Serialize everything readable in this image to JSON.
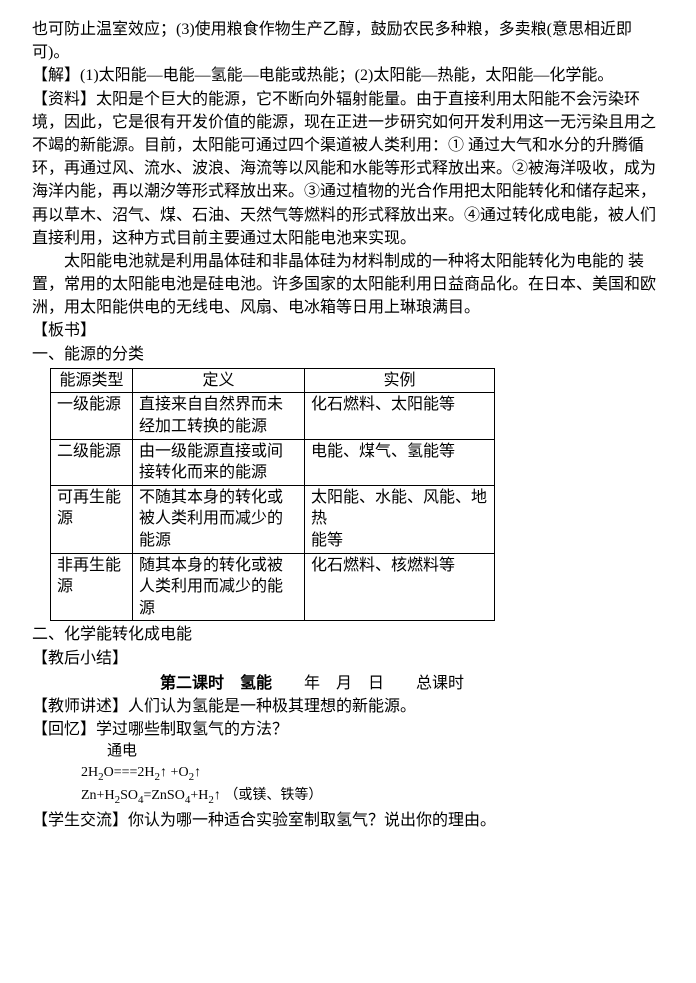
{
  "para1": "也可防止温室效应；(3)使用粮食作物生产乙醇，鼓励农民多种粮，多卖粮(意思相近即可)。",
  "para2": "【解】(1)太阳能—电能—氢能—电能或热能；(2)太阳能—热能，太阳能—化学能。",
  "para3": "【资料】太阳是个巨大的能源，它不断向外辐射能量。由于直接利用太阳能不会污染环境，因此，它是很有开发价值的能源，现在正进一步研究如何开发利用这一无污染且用之不竭的新能源。目前，太阳能可通过四个渠道被人类利用：① 通过大气和水分的升腾循环，再通过风、流水、波浪、海流等以风能和水能等形式释放出来。②被海洋吸收，成为海洋内能，再以潮汐等形式释放出来。③通过植物的光合作用把太阳能转化和储存起来，再以草木、沼气、煤、石油、天然气等燃料的形式释放出来。④通过转化成电能，被人们直接利用，这种方式目前主要通过太阳能电池来实现。",
  "para4": "太阳能电池就是利用晶体硅和非晶体硅为材料制成的一种将太阳能转化为电能的 装置，常用的太阳能电池是硅电池。许多国家的太阳能利用日益商品化。在日本、美国和欧洲，用太阳能供电的无线电、风扇、电冰箱等日用上琳琅满目。",
  "banshu": "【板书】",
  "sec1": "一、能源的分类",
  "table": {
    "header": [
      "能源类型",
      "定义",
      "实例"
    ],
    "rows": [
      [
        "一级能源",
        "直接来自自然界而未经加工转换的能源",
        "化石燃料、太阳能等"
      ],
      [
        "二级能源",
        "由一级能源直接或间接转化而来的能源",
        "电能、煤气、氢能等"
      ],
      [
        "可再生能源",
        "不随其本身的转化或被人类利用而减少的能源",
        "太阳能、水能、风能、地热\n能等"
      ],
      [
        "非再生能源",
        "随其本身的转化或被人类利用而减少的能源",
        "化石燃料、核燃料等"
      ]
    ]
  },
  "sec2": "二、化学能转化成电能",
  "jiaohou": "【教后小结】",
  "lesson_title_bold": "第二课时　氢能",
  "lesson_title_rest": "　　年　月　日　　总课时",
  "teacher": "【教师讲述】人们认为氢能是一种极其理想的新能源。",
  "recall": "【回忆】学过哪些制取氢气的方法？",
  "tongdian": "通电",
  "formula1_a": "2H",
  "formula1_b": "O===2H",
  "formula1_c": "↑ +O",
  "formula1_d": "↑",
  "formula2_a": "Zn+H",
  "formula2_b": "SO",
  "formula2_c": "=ZnSO",
  "formula2_d": "+H",
  "formula2_e": "↑ （或镁、铁等）",
  "student": "【学生交流】你认为哪一种适合实验室制取氢气？说出你的理由。"
}
